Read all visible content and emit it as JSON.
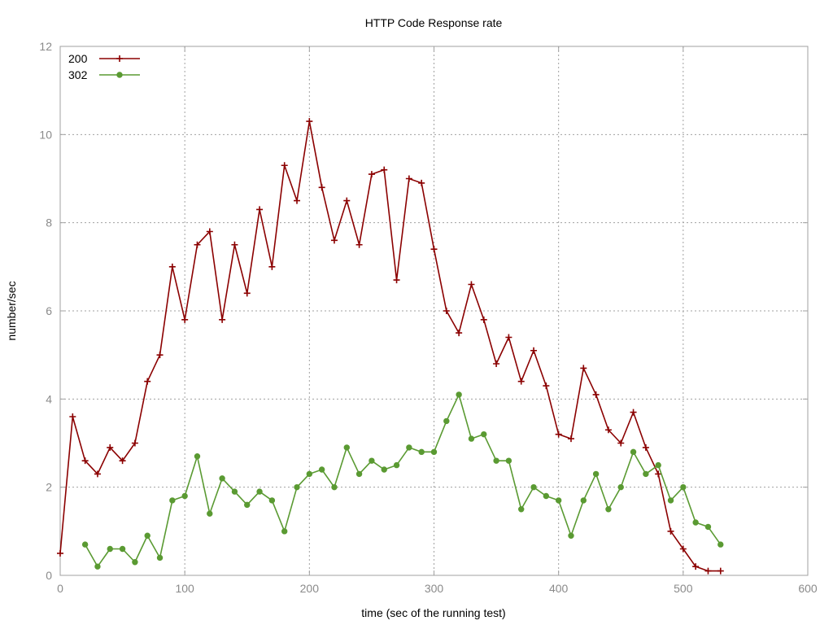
{
  "chart_data": {
    "type": "line",
    "title": "HTTP Code Response rate",
    "xlabel": "time (sec of the running test)",
    "ylabel": "number/sec",
    "xlim": [
      0,
      600
    ],
    "ylim": [
      0,
      12
    ],
    "x_ticks": [
      0,
      100,
      200,
      300,
      400,
      500,
      600
    ],
    "y_ticks": [
      0,
      2,
      4,
      6,
      8,
      10,
      12
    ],
    "grid": true,
    "legend_position": "top-left",
    "series": [
      {
        "name": "200",
        "color": "#8b0000",
        "marker": "plus",
        "x": [
          0,
          10,
          20,
          30,
          40,
          50,
          60,
          70,
          80,
          90,
          100,
          110,
          120,
          130,
          140,
          150,
          160,
          170,
          180,
          190,
          200,
          210,
          220,
          230,
          240,
          250,
          260,
          270,
          280,
          290,
          300,
          310,
          320,
          330,
          340,
          350,
          360,
          370,
          380,
          390,
          400,
          410,
          420,
          430,
          440,
          450,
          460,
          470,
          480,
          490,
          500,
          510,
          520,
          530
        ],
        "y": [
          0.5,
          3.6,
          2.6,
          2.3,
          2.9,
          2.6,
          3.0,
          4.4,
          5.0,
          7.0,
          5.8,
          7.5,
          7.8,
          5.8,
          7.5,
          6.4,
          8.3,
          7.0,
          9.3,
          8.5,
          10.3,
          8.8,
          7.6,
          8.5,
          7.5,
          9.1,
          9.2,
          6.7,
          9.0,
          8.9,
          7.4,
          6.0,
          5.5,
          6.6,
          5.8,
          4.8,
          5.4,
          4.4,
          5.1,
          4.3,
          3.2,
          3.1,
          4.7,
          4.1,
          3.3,
          3.0,
          3.7,
          2.9,
          2.3,
          1.0,
          0.6,
          0.2,
          0.1,
          0.1
        ]
      },
      {
        "name": "302",
        "color": "#5a9a32",
        "marker": "circle",
        "x": [
          20,
          30,
          40,
          50,
          60,
          70,
          80,
          90,
          100,
          110,
          120,
          130,
          140,
          150,
          160,
          170,
          180,
          190,
          200,
          210,
          220,
          230,
          240,
          250,
          260,
          270,
          280,
          290,
          300,
          310,
          320,
          330,
          340,
          350,
          360,
          370,
          380,
          390,
          400,
          410,
          420,
          430,
          440,
          450,
          460,
          470,
          480,
          490,
          500,
          510,
          520,
          530
        ],
        "y": [
          0.7,
          0.2,
          0.6,
          0.6,
          0.3,
          0.9,
          0.4,
          1.7,
          1.8,
          2.7,
          1.4,
          2.2,
          1.9,
          1.6,
          1.9,
          1.7,
          1.0,
          2.0,
          2.3,
          2.4,
          2.0,
          2.9,
          2.3,
          2.6,
          2.4,
          2.5,
          2.9,
          2.8,
          2.8,
          3.5,
          4.1,
          3.1,
          3.2,
          2.6,
          2.6,
          1.5,
          2.0,
          1.8,
          1.7,
          0.9,
          1.7,
          2.3,
          1.5,
          2.0,
          2.8,
          2.3,
          2.5,
          1.7,
          2.0,
          1.2,
          1.1,
          0.7
        ]
      }
    ]
  }
}
